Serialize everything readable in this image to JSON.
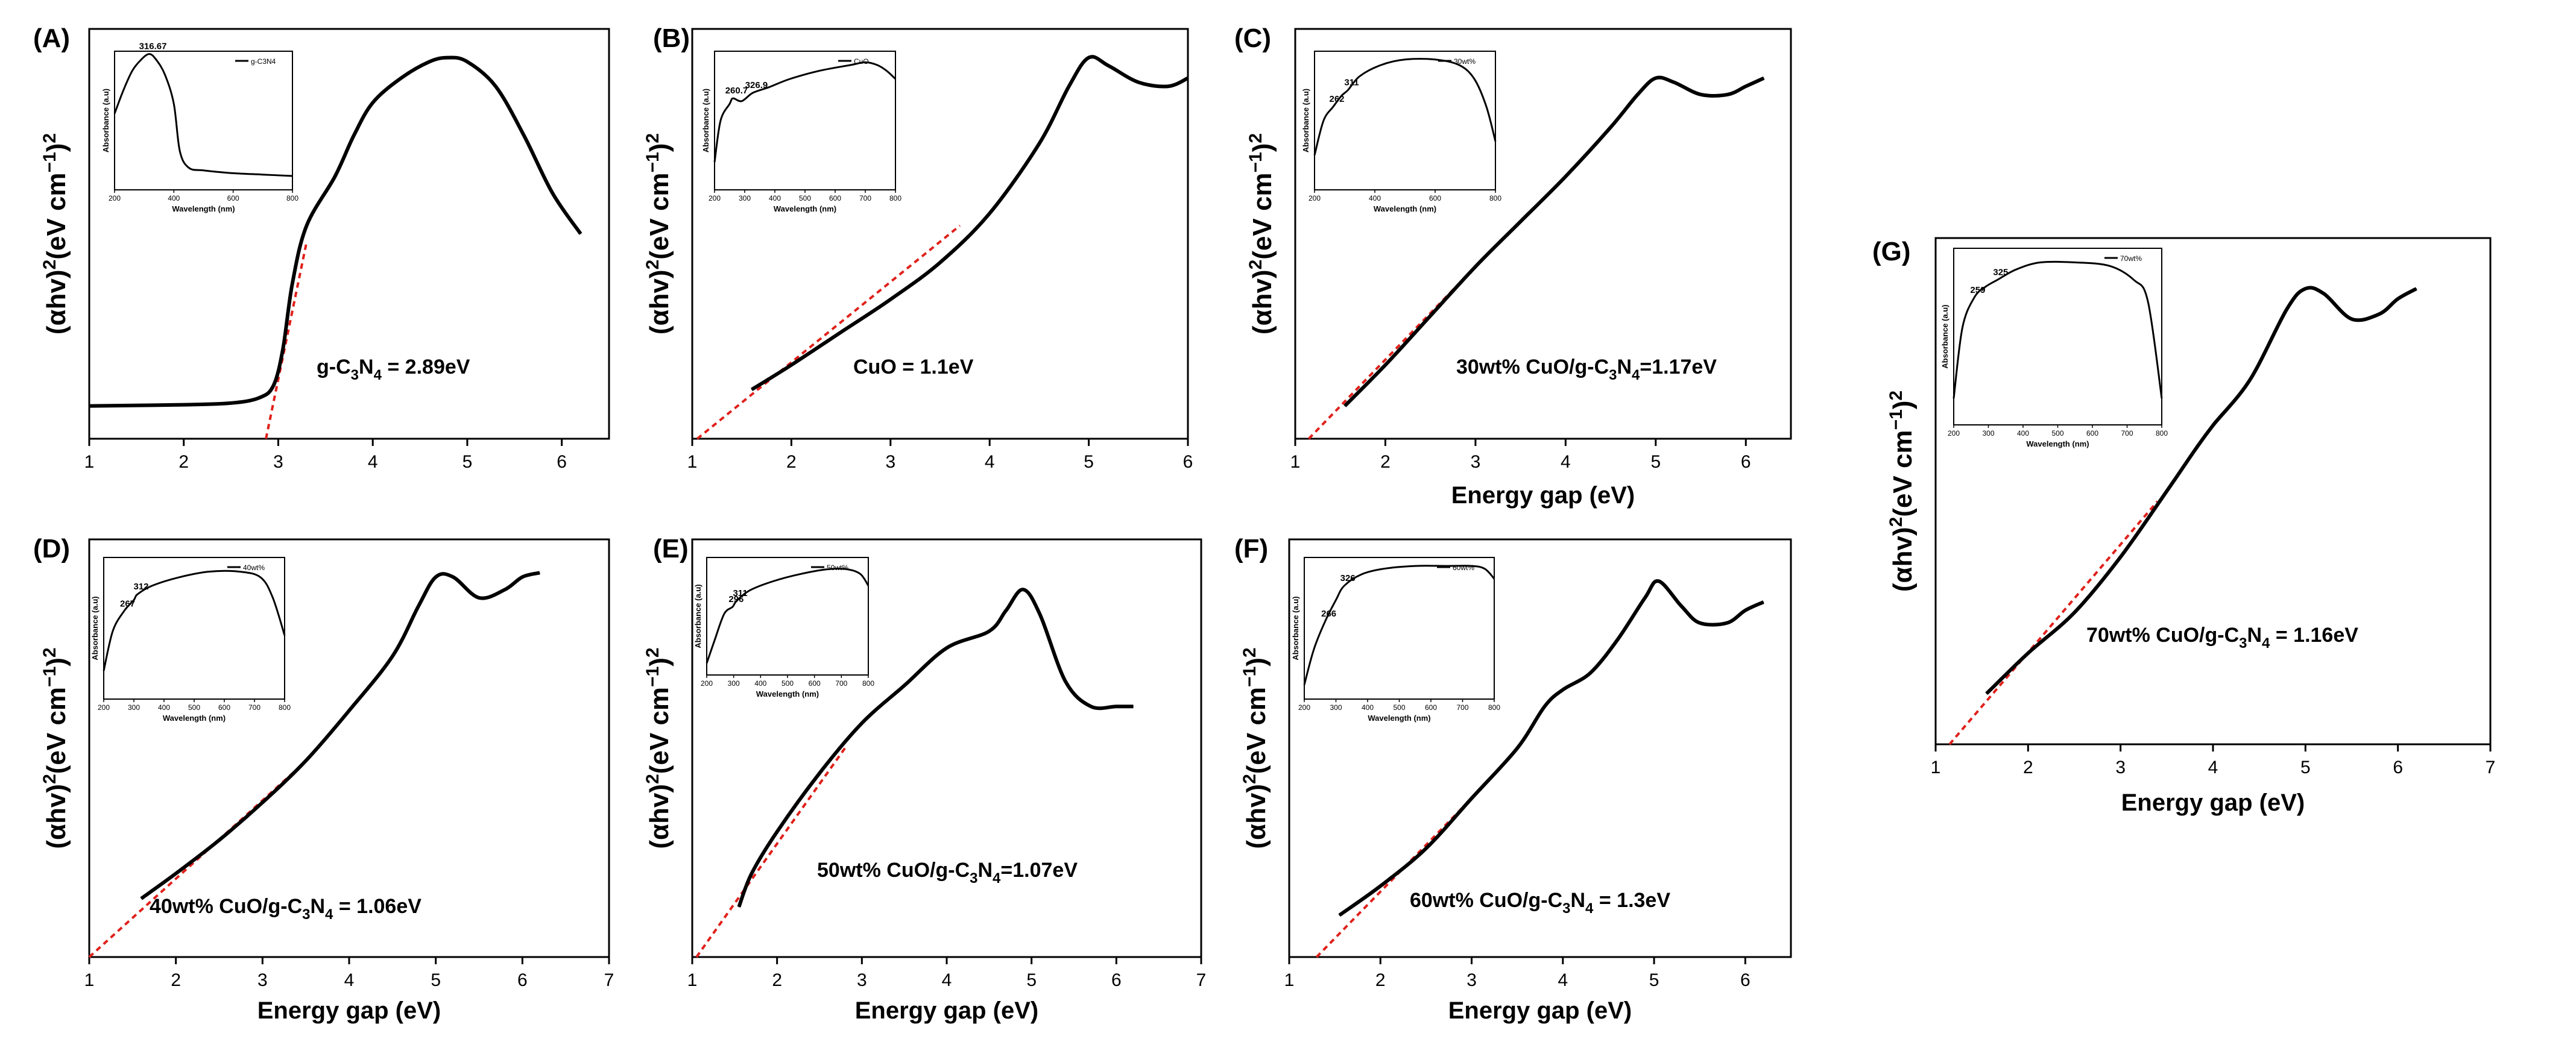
{
  "chart_data": [
    {
      "type": "line",
      "panel_label": "(A)",
      "xlabel": "",
      "ylabel": "(αhv)",
      "ylabel_unit": "(eV cm",
      "xlim": [
        1,
        6.5
      ],
      "xticks": [
        "1",
        "2",
        "3",
        "4",
        "5",
        "6"
      ],
      "ylim": [
        0,
        100
      ],
      "annotation": "g-C",
      "bandgap_eV": 2.89,
      "curve": [
        [
          1.0,
          8
        ],
        [
          2.0,
          8.3
        ],
        [
          2.5,
          8.7
        ],
        [
          2.8,
          10
        ],
        [
          2.95,
          13
        ],
        [
          3.05,
          22
        ],
        [
          3.15,
          38
        ],
        [
          3.3,
          52
        ],
        [
          3.6,
          64
        ],
        [
          3.8,
          74
        ],
        [
          4.0,
          82
        ],
        [
          4.3,
          88
        ],
        [
          4.6,
          92
        ],
        [
          4.8,
          93
        ],
        [
          5.0,
          92
        ],
        [
          5.3,
          86
        ],
        [
          5.6,
          74
        ],
        [
          5.9,
          60
        ],
        [
          6.2,
          50
        ]
      ],
      "fit_line": [
        [
          2.87,
          0
        ],
        [
          3.3,
          48
        ]
      ],
      "inset": {
        "legend": "g-C3N4",
        "peaks": [
          "316.67"
        ],
        "xlabel": "Wavelength (nm)",
        "ylabel": "Absorbance (a.u)",
        "xticks": [
          "200",
          "400",
          "600",
          "800"
        ],
        "xlim": [
          200,
          800
        ],
        "curve": [
          [
            200,
            55
          ],
          [
            230,
            72
          ],
          [
            260,
            86
          ],
          [
            290,
            94
          ],
          [
            317,
            98
          ],
          [
            340,
            94
          ],
          [
            370,
            83
          ],
          [
            400,
            62
          ],
          [
            420,
            28
          ],
          [
            450,
            16
          ],
          [
            500,
            14
          ],
          [
            600,
            12
          ],
          [
            700,
            11
          ],
          [
            800,
            10
          ]
        ]
      }
    },
    {
      "type": "line",
      "panel_label": "(B)",
      "xlabel": "",
      "ylabel": "(αhv)",
      "ylabel_unit": "(eV cm",
      "xlim": [
        1,
        6
      ],
      "xticks": [
        "1",
        "2",
        "3",
        "4",
        "5",
        "6"
      ],
      "ylim": [
        0,
        100
      ],
      "annotation": "CuO = 1.1eV",
      "bandgap_eV": 1.1,
      "curve": [
        [
          1.6,
          12
        ],
        [
          2.0,
          18
        ],
        [
          2.5,
          26
        ],
        [
          3.0,
          34
        ],
        [
          3.5,
          43
        ],
        [
          4.0,
          55
        ],
        [
          4.5,
          72
        ],
        [
          4.8,
          86
        ],
        [
          5.0,
          93
        ],
        [
          5.2,
          91
        ],
        [
          5.5,
          87
        ],
        [
          5.8,
          86
        ],
        [
          6.0,
          88
        ]
      ],
      "fit_line": [
        [
          1.05,
          0
        ],
        [
          3.7,
          52
        ]
      ],
      "inset": {
        "legend": "CuO",
        "peaks": [
          "260.7",
          "326.9"
        ],
        "xlabel": "Wavelength (nm)",
        "ylabel": "Absorbance (a.u)",
        "xticks": [
          "200",
          "300",
          "400",
          "500",
          "600",
          "700",
          "800"
        ],
        "xlim": [
          200,
          800
        ],
        "curve": [
          [
            200,
            20
          ],
          [
            220,
            50
          ],
          [
            250,
            62
          ],
          [
            261,
            66
          ],
          [
            290,
            64
          ],
          [
            327,
            70
          ],
          [
            380,
            74
          ],
          [
            450,
            80
          ],
          [
            550,
            86
          ],
          [
            650,
            90
          ],
          [
            700,
            92
          ],
          [
            740,
            90
          ],
          [
            770,
            86
          ],
          [
            800,
            80
          ]
        ]
      }
    },
    {
      "type": "line",
      "panel_label": "(C)",
      "xlabel": "Energy gap (eV)",
      "ylabel": "(αhv)",
      "ylabel_unit": "(eV cm",
      "xlim": [
        1,
        6.5
      ],
      "xticks": [
        "1",
        "2",
        "3",
        "4",
        "5",
        "6"
      ],
      "ylim": [
        0,
        100
      ],
      "annotation": "30wt% CuO/g-C",
      "bandgap_eV": 1.17,
      "curve": [
        [
          1.55,
          8
        ],
        [
          2.0,
          18
        ],
        [
          2.5,
          30
        ],
        [
          3.0,
          42
        ],
        [
          3.5,
          53
        ],
        [
          4.0,
          64
        ],
        [
          4.5,
          76
        ],
        [
          4.8,
          84
        ],
        [
          5.0,
          88
        ],
        [
          5.2,
          87
        ],
        [
          5.5,
          84
        ],
        [
          5.8,
          84
        ],
        [
          6.0,
          86
        ],
        [
          6.2,
          88
        ]
      ],
      "fit_line": [
        [
          1.15,
          0
        ],
        [
          3.0,
          42
        ]
      ],
      "inset": {
        "legend": "30wt%",
        "peaks": [
          "262",
          "311"
        ],
        "xlabel": "Wavelength (nm)",
        "ylabel": "Absorbance (a.u)",
        "xticks": [
          "200",
          "400",
          "600",
          "800"
        ],
        "xlim": [
          200,
          800
        ],
        "curve": [
          [
            200,
            25
          ],
          [
            230,
            50
          ],
          [
            262,
            60
          ],
          [
            290,
            68
          ],
          [
            311,
            72
          ],
          [
            350,
            82
          ],
          [
            420,
            90
          ],
          [
            500,
            94
          ],
          [
            600,
            94
          ],
          [
            680,
            90
          ],
          [
            730,
            80
          ],
          [
            770,
            60
          ],
          [
            800,
            35
          ]
        ]
      }
    },
    {
      "type": "line",
      "panel_label": "(D)",
      "xlabel": "Energy gap (eV)",
      "ylabel": "(αhv)",
      "ylabel_unit": "(eV cm",
      "xlim": [
        1,
        7
      ],
      "xticks": [
        "1",
        "2",
        "3",
        "4",
        "5",
        "6",
        "7"
      ],
      "ylim": [
        0,
        100
      ],
      "annotation": "40wt% CuO/g-C",
      "bandgap_eV": 1.06,
      "curve": [
        [
          1.6,
          14
        ],
        [
          2.0,
          20
        ],
        [
          2.5,
          28
        ],
        [
          3.0,
          37
        ],
        [
          3.5,
          47
        ],
        [
          4.0,
          59
        ],
        [
          4.5,
          72
        ],
        [
          4.8,
          84
        ],
        [
          5.0,
          91
        ],
        [
          5.2,
          91
        ],
        [
          5.5,
          86
        ],
        [
          5.8,
          88
        ],
        [
          6.0,
          91
        ],
        [
          6.2,
          92
        ]
      ],
      "fit_line": [
        [
          1.0,
          0
        ],
        [
          3.4,
          45
        ]
      ],
      "inset": {
        "legend": "40wt%",
        "peaks": [
          "267",
          "312"
        ],
        "xlabel": "Wavelength (nm)",
        "ylabel": "Absorbance (a.u)",
        "xticks": [
          "200",
          "300",
          "400",
          "500",
          "600",
          "700",
          "800"
        ],
        "xlim": [
          200,
          800
        ],
        "curve": [
          [
            200,
            20
          ],
          [
            230,
            48
          ],
          [
            267,
            62
          ],
          [
            300,
            70
          ],
          [
            312,
            74
          ],
          [
            360,
            80
          ],
          [
            450,
            86
          ],
          [
            550,
            90
          ],
          [
            650,
            90
          ],
          [
            720,
            86
          ],
          [
            760,
            72
          ],
          [
            800,
            45
          ]
        ]
      }
    },
    {
      "type": "line",
      "panel_label": "(E)",
      "xlabel": "Energy gap (eV)",
      "ylabel": "(αhv)",
      "ylabel_unit": "(eV cm",
      "xlim": [
        1,
        7
      ],
      "xticks": [
        "1",
        "2",
        "3",
        "4",
        "5",
        "6",
        "7"
      ],
      "ylim": [
        0,
        100
      ],
      "annotation": "50wt% CuO/g-C",
      "bandgap_eV": 1.07,
      "curve": [
        [
          1.55,
          12
        ],
        [
          1.7,
          20
        ],
        [
          2.0,
          30
        ],
        [
          2.5,
          44
        ],
        [
          3.0,
          56
        ],
        [
          3.5,
          65
        ],
        [
          4.0,
          74
        ],
        [
          4.5,
          78
        ],
        [
          4.7,
          83
        ],
        [
          4.9,
          88
        ],
        [
          5.1,
          82
        ],
        [
          5.4,
          66
        ],
        [
          5.7,
          60
        ],
        [
          6.0,
          60
        ],
        [
          6.2,
          60
        ]
      ],
      "fit_line": [
        [
          1.05,
          0
        ],
        [
          2.8,
          50
        ]
      ],
      "inset": {
        "legend": "50wt%",
        "peaks": [
          "296",
          "311"
        ],
        "xlabel": "Wavelength (nm)",
        "ylabel": "Absorbance (a.u)",
        "xticks": [
          "200",
          "300",
          "400",
          "500",
          "600",
          "700",
          "800"
        ],
        "xlim": [
          200,
          800
        ],
        "curve": [
          [
            200,
            10
          ],
          [
            230,
            30
          ],
          [
            265,
            52
          ],
          [
            296,
            58
          ],
          [
            311,
            63
          ],
          [
            360,
            72
          ],
          [
            450,
            80
          ],
          [
            550,
            86
          ],
          [
            650,
            90
          ],
          [
            720,
            90
          ],
          [
            770,
            86
          ],
          [
            800,
            76
          ]
        ]
      }
    },
    {
      "type": "line",
      "panel_label": "(F)",
      "xlabel": "Energy gap (eV)",
      "ylabel": "(αhv)",
      "ylabel_unit": "(eV cm",
      "xlim": [
        1,
        6.5
      ],
      "xticks": [
        "1",
        "2",
        "3",
        "4",
        "5",
        "6"
      ],
      "ylim": [
        0,
        100
      ],
      "annotation": "60wt% CuO/g-C",
      "bandgap_eV": 1.3,
      "curve": [
        [
          1.55,
          10
        ],
        [
          2.0,
          17
        ],
        [
          2.5,
          26
        ],
        [
          3.0,
          38
        ],
        [
          3.5,
          50
        ],
        [
          3.8,
          60
        ],
        [
          4.0,
          64
        ],
        [
          4.3,
          68
        ],
        [
          4.6,
          76
        ],
        [
          4.9,
          86
        ],
        [
          5.05,
          90
        ],
        [
          5.3,
          84
        ],
        [
          5.5,
          80
        ],
        [
          5.8,
          80
        ],
        [
          6.0,
          83
        ],
        [
          6.2,
          85
        ]
      ],
      "fit_line": [
        [
          1.3,
          0
        ],
        [
          3.0,
          38
        ]
      ],
      "inset": {
        "legend": "60wt%",
        "peaks": [
          "266",
          "326"
        ],
        "xlabel": "Wavelength (nm)",
        "ylabel": "Absorbance (a.u)",
        "xticks": [
          "200",
          "300",
          "400",
          "500",
          "600",
          "700",
          "800"
        ],
        "xlim": [
          200,
          800
        ],
        "curve": [
          [
            200,
            10
          ],
          [
            230,
            35
          ],
          [
            266,
            55
          ],
          [
            300,
            70
          ],
          [
            326,
            80
          ],
          [
            380,
            88
          ],
          [
            450,
            92
          ],
          [
            550,
            94
          ],
          [
            650,
            94
          ],
          [
            730,
            94
          ],
          [
            770,
            92
          ],
          [
            800,
            85
          ]
        ]
      }
    },
    {
      "type": "line",
      "panel_label": "(G)",
      "xlabel": "Energy gap (eV)",
      "ylabel": "(αhv)",
      "ylabel_unit": "(eV cm",
      "xlim": [
        1,
        7
      ],
      "xticks": [
        "1",
        "2",
        "3",
        "4",
        "5",
        "6",
        "7"
      ],
      "ylim": [
        0,
        100
      ],
      "annotation": "70wt% CuO/g-C",
      "bandgap_eV": 1.16,
      "curve": [
        [
          1.55,
          10
        ],
        [
          2.0,
          18
        ],
        [
          2.5,
          26
        ],
        [
          3.0,
          37
        ],
        [
          3.5,
          50
        ],
        [
          3.8,
          58
        ],
        [
          4.0,
          63
        ],
        [
          4.4,
          72
        ],
        [
          4.8,
          86
        ],
        [
          5.0,
          90
        ],
        [
          5.2,
          89
        ],
        [
          5.5,
          84
        ],
        [
          5.8,
          85
        ],
        [
          6.0,
          88
        ],
        [
          6.2,
          90
        ]
      ],
      "fit_line": [
        [
          1.15,
          0
        ],
        [
          3.4,
          48
        ]
      ],
      "inset": {
        "legend": "70wt%",
        "peaks": [
          "259",
          "325"
        ],
        "xlabel": "Wavelength (nm)",
        "ylabel": "Absorbance (a.u)",
        "xticks": [
          "200",
          "300",
          "400",
          "500",
          "600",
          "700",
          "800"
        ],
        "xlim": [
          200,
          800
        ],
        "curve": [
          [
            200,
            15
          ],
          [
            225,
            55
          ],
          [
            259,
            72
          ],
          [
            290,
            78
          ],
          [
            325,
            82
          ],
          [
            380,
            88
          ],
          [
            450,
            92
          ],
          [
            550,
            92
          ],
          [
            650,
            90
          ],
          [
            720,
            82
          ],
          [
            760,
            70
          ],
          [
            800,
            15
          ]
        ]
      }
    }
  ]
}
